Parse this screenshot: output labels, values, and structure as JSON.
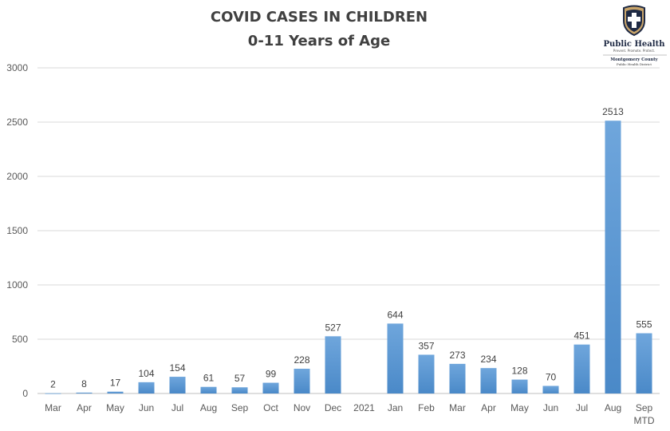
{
  "chart_data": {
    "type": "bar",
    "title": "COVID CASES IN CHILDREN",
    "subtitle": "0-11 Years of Age",
    "xlabel": "",
    "ylabel": "",
    "ylim": [
      0,
      3000
    ],
    "yticks": [
      0,
      500,
      1000,
      1500,
      2000,
      2500,
      3000
    ],
    "grid": true,
    "categories": [
      "Mar",
      "Apr",
      "May",
      "Jun",
      "Jul",
      "Aug",
      "Sep",
      "Oct",
      "Nov",
      "Dec",
      "2021",
      "Jan",
      "Feb",
      "Mar",
      "Apr",
      "May",
      "Jun",
      "Jul",
      "Aug",
      "Sep MTD"
    ],
    "category_lines": [
      [
        "Mar"
      ],
      [
        "Apr"
      ],
      [
        "May"
      ],
      [
        "Jun"
      ],
      [
        "Jul"
      ],
      [
        "Aug"
      ],
      [
        "Sep"
      ],
      [
        "Oct"
      ],
      [
        "Nov"
      ],
      [
        "Dec"
      ],
      [
        "2021"
      ],
      [
        "Jan"
      ],
      [
        "Feb"
      ],
      [
        "Mar"
      ],
      [
        "Apr"
      ],
      [
        "May"
      ],
      [
        "Jun"
      ],
      [
        "Jul"
      ],
      [
        "Aug"
      ],
      [
        "Sep",
        "MTD"
      ]
    ],
    "values": [
      2,
      8,
      17,
      104,
      154,
      61,
      57,
      99,
      228,
      527,
      null,
      644,
      357,
      273,
      234,
      128,
      70,
      451,
      2513,
      555
    ],
    "data_labels": [
      "2",
      "8",
      "17",
      "104",
      "154",
      "61",
      "57",
      "99",
      "228",
      "527",
      "",
      "644",
      "357",
      "273",
      "234",
      "128",
      "70",
      "451",
      "2513",
      "555"
    ],
    "bar_color": "#5b9bd5"
  },
  "logo": {
    "name": "Public Health",
    "tagline": "Prevent. Promote. Protect.",
    "org": "Montgomery County",
    "org_sub": "Public Health District"
  }
}
